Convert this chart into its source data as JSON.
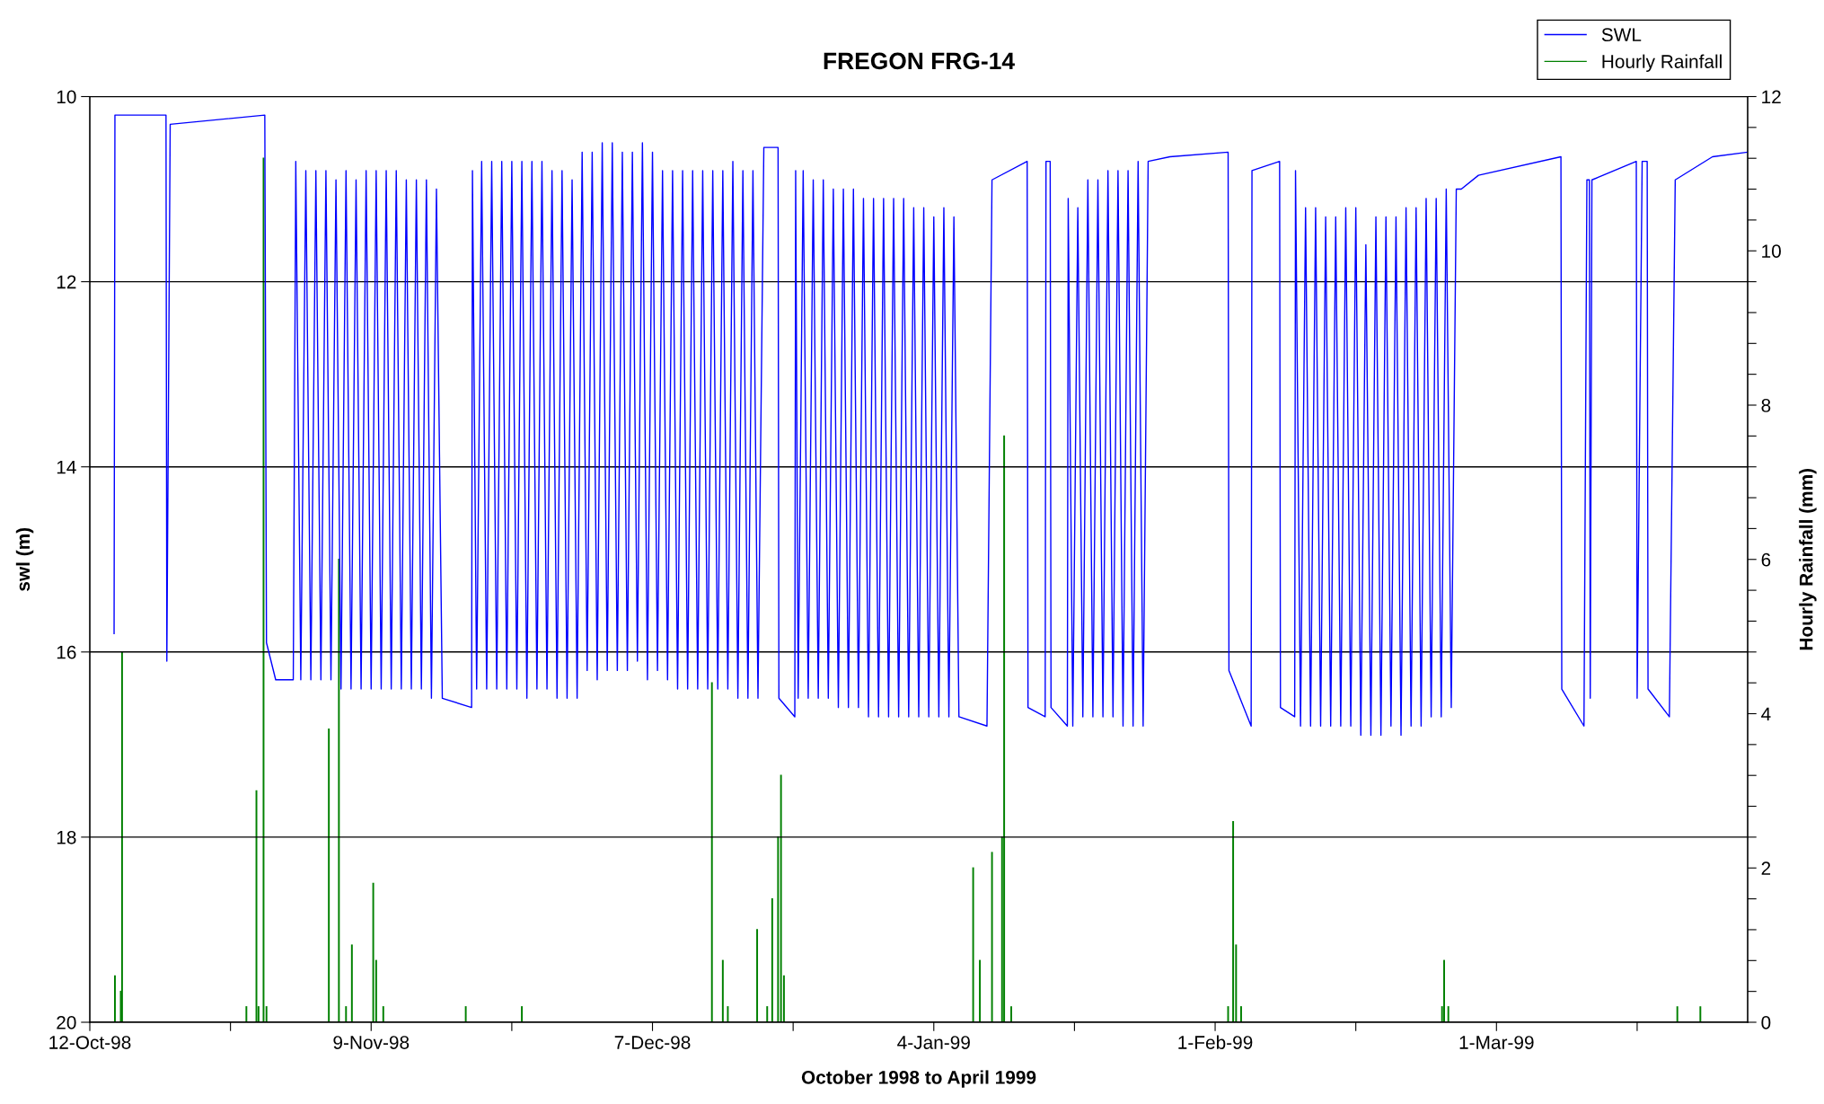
{
  "chart_data": {
    "type": "line",
    "title": "FREGON FRG-14",
    "xlabel": "October 1998 to April 1999",
    "ylabel": "swl (m)",
    "y2label": "Hourly Rainfall (mm)",
    "xlim": [
      "1998-10-12",
      "1999-03-26"
    ],
    "xticks": [
      {
        "value": "1998-10-12",
        "label": "12-Oct-98"
      },
      {
        "value": "1998-10-26",
        "label": null
      },
      {
        "value": "1998-11-09",
        "label": "9-Nov-98"
      },
      {
        "value": "1998-11-23",
        "label": null
      },
      {
        "value": "1998-12-07",
        "label": "7-Dec-98"
      },
      {
        "value": "1998-12-21",
        "label": null
      },
      {
        "value": "1999-01-04",
        "label": "4-Jan-99"
      },
      {
        "value": "1999-01-18",
        "label": null
      },
      {
        "value": "1999-02-01",
        "label": "1-Feb-99"
      },
      {
        "value": "1999-02-15",
        "label": null
      },
      {
        "value": "1999-03-01",
        "label": "1-Mar-99"
      },
      {
        "value": "1999-03-15",
        "label": null
      }
    ],
    "ylim": [
      20,
      10
    ],
    "yticks": [
      10,
      12,
      14,
      16,
      18,
      20
    ],
    "y2lim": [
      0,
      12
    ],
    "y2ticks": [
      0,
      {
        "value": 0.4,
        "label": null
      },
      {
        "value": 0.8,
        "label": null
      },
      {
        "value": 1.2,
        "label": null
      },
      {
        "value": 1.6,
        "label": null
      },
      2,
      {
        "value": 2.4,
        "label": null
      },
      {
        "value": 2.8,
        "label": null
      },
      {
        "value": 3.2,
        "label": null
      },
      {
        "value": 3.6,
        "label": null
      },
      4,
      {
        "value": 4.4,
        "label": null
      },
      {
        "value": 4.8,
        "label": null
      },
      {
        "value": 5.2,
        "label": null
      },
      {
        "value": 5.6,
        "label": null
      },
      6,
      {
        "value": 6.4,
        "label": null
      },
      {
        "value": 6.8,
        "label": null
      },
      {
        "value": 7.2,
        "label": null
      },
      {
        "value": 7.6,
        "label": null
      },
      8,
      {
        "value": 8.4,
        "label": null
      },
      {
        "value": 8.8,
        "label": null
      },
      {
        "value": 9.2,
        "label": null
      },
      {
        "value": 9.6,
        "label": null
      },
      10,
      {
        "value": 10.4,
        "label": null
      },
      {
        "value": 10.8,
        "label": null
      },
      {
        "value": 11.2,
        "label": null
      },
      {
        "value": 11.6,
        "label": null
      },
      12
    ],
    "grid": "y",
    "legend": "top right",
    "series": [
      {
        "name": "SWL",
        "color": "#0000ff",
        "x": [
          "1998-10-14T10:00",
          "1998-10-14T12:00",
          "1998-10-19T14:00",
          "1998-10-19T16:00",
          "1998-10-20T00:00",
          "1998-10-29T10:00",
          "1998-10-29T14:00",
          "1998-10-30T12:00",
          "1998-11-01T06:00",
          "1998-11-01T12:00",
          "1998-11-02T00:00",
          "1998-11-02T12:00",
          "1998-11-03T00:00",
          "1998-11-03T12:00",
          "1998-11-04T00:00",
          "1998-11-04T12:00",
          "1998-11-05T00:00",
          "1998-11-05T12:00",
          "1998-11-06T00:00",
          "1998-11-06T12:00",
          "1998-11-07T00:00",
          "1998-11-07T12:00",
          "1998-11-08T00:00",
          "1998-11-08T12:00",
          "1998-11-09T00:00",
          "1998-11-09T12:00",
          "1998-11-10T00:00",
          "1998-11-10T12:00",
          "1998-11-11T00:00",
          "1998-11-11T12:00",
          "1998-11-12T00:00",
          "1998-11-12T12:00",
          "1998-11-13T00:00",
          "1998-11-13T12:00",
          "1998-11-14T00:00",
          "1998-11-14T12:00",
          "1998-11-15T00:00",
          "1998-11-15T12:00",
          "1998-11-16T02:00",
          "1998-11-19T00:00",
          "1998-11-19T02:00",
          "1998-11-19T12:00",
          "1998-11-20T00:00",
          "1998-11-20T12:00",
          "1998-11-21T00:00",
          "1998-11-21T12:00",
          "1998-11-22T00:00",
          "1998-11-22T12:00",
          "1998-11-23T00:00",
          "1998-11-23T12:00",
          "1998-11-24T00:00",
          "1998-11-24T12:00",
          "1998-11-25T00:00",
          "1998-11-25T12:00",
          "1998-11-26T00:00",
          "1998-11-26T12:00",
          "1998-11-27T00:00",
          "1998-11-27T12:00",
          "1998-11-28T00:00",
          "1998-11-28T12:00",
          "1998-11-29T00:00",
          "1998-11-29T12:00",
          "1998-11-30T00:00",
          "1998-11-30T12:00",
          "1998-12-01T00:00",
          "1998-12-01T12:00",
          "1998-12-02T00:00",
          "1998-12-02T12:00",
          "1998-12-03T00:00",
          "1998-12-03T12:00",
          "1998-12-04T00:00",
          "1998-12-04T12:00",
          "1998-12-05T00:00",
          "1998-12-05T12:00",
          "1998-12-06T00:00",
          "1998-12-06T12:00",
          "1998-12-07T00:00",
          "1998-12-07T12:00",
          "1998-12-08T00:00",
          "1998-12-08T12:00",
          "1998-12-09T00:00",
          "1998-12-09T12:00",
          "1998-12-10T00:00",
          "1998-12-10T12:00",
          "1998-12-11T00:00",
          "1998-12-11T12:00",
          "1998-12-12T00:00",
          "1998-12-12T12:00",
          "1998-12-13T00:00",
          "1998-12-13T12:00",
          "1998-12-14T00:00",
          "1998-12-14T12:00",
          "1998-12-15T00:00",
          "1998-12-15T12:00",
          "1998-12-16T00:00",
          "1998-12-16T12:00",
          "1998-12-17T00:00",
          "1998-12-17T12:00",
          "1998-12-18T02:00",
          "1998-12-19T12:00",
          "1998-12-19T14:00",
          "1998-12-21T04:00",
          "1998-12-21T06:00",
          "1998-12-21T12:00",
          "1998-12-22T00:00",
          "1998-12-22T12:00",
          "1998-12-23T00:00",
          "1998-12-23T12:00",
          "1998-12-24T00:00",
          "1998-12-24T12:00",
          "1998-12-25T00:00",
          "1998-12-25T12:00",
          "1998-12-26T00:00",
          "1998-12-26T12:00",
          "1998-12-27T00:00",
          "1998-12-27T12:00",
          "1998-12-28T00:00",
          "1998-12-28T12:00",
          "1998-12-29T00:00",
          "1998-12-29T12:00",
          "1998-12-30T00:00",
          "1998-12-30T12:00",
          "1998-12-31T00:00",
          "1998-12-31T12:00",
          "1999-01-01T00:00",
          "1999-01-01T12:00",
          "1999-01-02T00:00",
          "1999-01-02T12:00",
          "1999-01-03T00:00",
          "1999-01-03T12:00",
          "1999-01-04T00:00",
          "1999-01-04T12:00",
          "1999-01-05T00:00",
          "1999-01-05T12:00",
          "1999-01-06T00:00",
          "1999-01-06T12:00",
          "1999-01-09T07:00",
          "1999-01-09T19:00",
          "1999-01-13T07:00",
          "1999-01-13T09:00",
          "1999-01-15T02:00",
          "1999-01-15T04:00",
          "1999-01-15T14:00",
          "1999-01-15T16:00",
          "1999-01-17T07:00",
          "1999-01-17T09:00",
          "1999-01-17T20:00",
          "1999-01-18T08:00",
          "1999-01-18T20:00",
          "1999-01-19T08:00",
          "1999-01-19T20:00",
          "1999-01-20T08:00",
          "1999-01-20T20:00",
          "1999-01-21T08:00",
          "1999-01-21T20:00",
          "1999-01-22T08:00",
          "1999-01-22T20:00",
          "1999-01-23T08:00",
          "1999-01-23T20:00",
          "1999-01-24T08:00",
          "1999-01-24T20:00",
          "1999-01-25T08:00",
          "1999-01-27T12:00",
          "1999-02-02T07:00",
          "1999-02-02T09:00",
          "1999-02-04T14:00",
          "1999-02-04T16:00",
          "1999-02-07T10:00",
          "1999-02-07T12:00",
          "1999-02-08T22:00",
          "1999-02-09T00:00",
          "1999-02-09T12:00",
          "1999-02-10T00:00",
          "1999-02-10T12:00",
          "1999-02-11T00:00",
          "1999-02-11T12:00",
          "1999-02-12T00:00",
          "1999-02-12T12:00",
          "1999-02-13T00:00",
          "1999-02-13T12:00",
          "1999-02-14T00:00",
          "1999-02-14T12:00",
          "1999-02-15T00:00",
          "1999-02-15T12:00",
          "1999-02-16T00:00",
          "1999-02-16T12:00",
          "1999-02-17T00:00",
          "1999-02-17T12:00",
          "1999-02-18T00:00",
          "1999-02-18T12:00",
          "1999-02-19T00:00",
          "1999-02-19T12:00",
          "1999-02-20T00:00",
          "1999-02-20T12:00",
          "1999-02-21T00:00",
          "1999-02-21T12:00",
          "1999-02-22T00:00",
          "1999-02-22T12:00",
          "1999-02-23T00:00",
          "1999-02-23T12:00",
          "1999-02-24T00:00",
          "1999-02-24T12:00",
          "1999-02-25T00:00",
          "1999-02-25T12:00",
          "1999-02-27T05:00",
          "1999-03-07T10:00",
          "1999-03-07T12:00",
          "1999-03-09T17:00",
          "1999-03-10T00:00",
          "1999-03-10T06:00",
          "1999-03-10T08:00",
          "1999-03-10T12:00",
          "1999-03-14T22:00",
          "1999-03-15T00:00",
          "1999-03-15T12:00",
          "1999-03-16T00:00",
          "1999-03-16T02:00",
          "1999-03-18T05:00",
          "1999-03-18T19:00",
          "1999-03-22T12:00",
          "1999-03-26T00:00"
        ],
        "values": [
          15.8,
          10.2,
          10.2,
          16.1,
          10.3,
          10.2,
          15.9,
          16.3,
          16.3,
          10.7,
          16.3,
          10.8,
          16.3,
          10.8,
          16.3,
          10.8,
          16.3,
          10.9,
          16.4,
          10.8,
          16.4,
          10.9,
          16.4,
          10.8,
          16.4,
          10.8,
          16.4,
          10.8,
          16.4,
          10.8,
          16.4,
          10.9,
          16.4,
          10.9,
          16.4,
          10.9,
          16.5,
          11.0,
          16.5,
          16.6,
          10.8,
          16.4,
          10.7,
          16.4,
          10.7,
          16.4,
          10.7,
          16.4,
          10.7,
          16.4,
          10.7,
          16.5,
          10.7,
          16.4,
          10.7,
          16.4,
          10.8,
          16.5,
          10.8,
          16.5,
          10.9,
          16.5,
          10.6,
          16.2,
          10.6,
          16.3,
          10.5,
          16.2,
          10.5,
          16.2,
          10.6,
          16.2,
          10.6,
          16.1,
          10.5,
          16.3,
          10.6,
          16.2,
          10.8,
          16.3,
          10.8,
          16.4,
          10.8,
          16.4,
          10.8,
          16.4,
          10.8,
          16.4,
          10.8,
          16.4,
          10.8,
          16.4,
          10.7,
          16.5,
          10.8,
          16.5,
          10.8,
          16.5,
          10.55,
          10.55,
          16.5,
          16.7,
          10.8,
          16.5,
          10.8,
          16.5,
          10.9,
          16.5,
          10.9,
          16.5,
          11.0,
          16.6,
          11.0,
          16.6,
          11.0,
          16.6,
          11.1,
          16.7,
          11.1,
          16.7,
          11.1,
          16.7,
          11.1,
          16.7,
          11.1,
          16.7,
          11.2,
          16.7,
          11.2,
          16.7,
          11.3,
          16.7,
          11.2,
          16.7,
          11.3,
          16.7,
          16.8,
          10.9,
          10.7,
          16.6,
          16.7,
          10.7,
          10.7,
          16.6,
          16.8,
          11.1,
          16.8,
          11.2,
          16.7,
          10.9,
          16.7,
          10.9,
          16.7,
          10.8,
          16.7,
          10.8,
          16.8,
          10.8,
          16.8,
          10.7,
          16.8,
          10.7,
          10.65,
          10.6,
          16.2,
          16.8,
          10.8,
          10.7,
          16.6,
          16.7,
          10.8,
          16.8,
          11.2,
          16.8,
          11.2,
          16.8,
          11.3,
          16.8,
          11.3,
          16.8,
          11.2,
          16.8,
          11.2,
          16.9,
          11.6,
          16.9,
          11.3,
          16.9,
          11.3,
          16.8,
          11.3,
          16.9,
          11.2,
          16.8,
          11.2,
          16.8,
          11.1,
          16.7,
          11.1,
          16.7,
          11.0,
          16.6,
          11.0,
          11.0,
          10.85,
          10.65,
          16.4,
          16.8,
          10.9,
          10.9,
          16.5,
          10.9,
          10.7,
          16.5,
          10.7,
          10.7,
          16.4,
          16.7,
          10.9,
          10.65,
          10.6
        ]
      },
      {
        "name": "Hourly Rainfall",
        "type": "bar",
        "axis": "y2",
        "color": "#008000",
        "x": [
          "1998-10-14T12:00",
          "1998-10-15T02:00",
          "1998-10-15T05:00",
          "1998-10-27T14:00",
          "1998-10-28T14:00",
          "1998-10-28T19:00",
          "1998-10-29T07:00",
          "1998-10-29T14:00",
          "1998-11-04T19:00",
          "1998-11-05T19:00",
          "1998-11-06T12:00",
          "1998-11-07T02:00",
          "1998-11-09T05:00",
          "1998-11-09T07:00",
          "1998-11-09T12:00",
          "1998-11-10T05:00",
          "1998-11-18T10:00",
          "1998-11-24T00:00",
          "1998-12-12T22:00",
          "1998-12-14T00:00",
          "1998-12-14T12:00",
          "1998-12-17T10:00",
          "1998-12-18T10:00",
          "1998-12-18T22:00",
          "1998-12-19T12:00",
          "1998-12-19T19:00",
          "1998-12-20T02:00",
          "1999-01-07T22:00",
          "1999-01-08T14:00",
          "1999-01-09T19:00",
          "1999-01-10T19:00",
          "1999-01-11T00:00",
          "1999-01-11T17:00",
          "1999-02-02T07:00",
          "1999-02-02T19:00",
          "1999-02-03T02:00",
          "1999-02-03T14:00",
          "1999-02-23T14:00",
          "1999-02-23T19:00",
          "1999-02-24T05:00",
          "1999-03-19T00:00",
          "1999-03-21T07:00"
        ],
        "values": [
          0.6,
          0.4,
          4.8,
          0.2,
          3.0,
          0.2,
          11.2,
          0.2,
          3.8,
          6.0,
          0.2,
          1.0,
          1.8,
          null,
          0.8,
          0.2,
          0.2,
          0.2,
          4.4,
          0.8,
          0.2,
          1.2,
          0.2,
          1.6,
          2.4,
          3.2,
          0.6,
          2.0,
          0.8,
          2.2,
          2.4,
          7.6,
          0.2,
          0.2,
          2.6,
          1.0,
          0.2,
          0.2,
          0.8,
          0.2,
          0.2,
          0.2
        ]
      }
    ]
  }
}
